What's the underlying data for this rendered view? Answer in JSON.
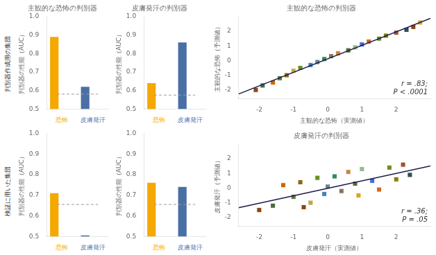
{
  "row_labels": [
    "判別器作成用の集団",
    "検証に用いた集団"
  ],
  "chart_data": [
    {
      "type": "bar",
      "title": "主観的な恐怖の判別器",
      "ylabel": "判別器の性能（AUC）",
      "categories": [
        "恐怖",
        "皮膚発汗"
      ],
      "series": [
        {
          "type": "bar",
          "colors": [
            "#F5A800",
            "#4A6FA5"
          ],
          "values": [
            0.89,
            0.62
          ]
        },
        {
          "type": "line",
          "color": "#999999",
          "line_style": "dashed",
          "values": [
            0.58,
            0.58
          ]
        }
      ],
      "ylim": [
        0.5,
        1.0
      ],
      "yticks": [
        0.5,
        0.6,
        0.7,
        0.8,
        0.9,
        {
          "value": 1.0,
          "label": "1.0"
        }
      ],
      "grid": false
    },
    {
      "type": "bar",
      "title": "皮膚発汗の判別器",
      "ylabel": "判別器の性能（AUC）",
      "categories": [
        "恐怖",
        "皮膚発汗"
      ],
      "series": [
        {
          "type": "bar",
          "colors": [
            "#F5A800",
            "#4A6FA5"
          ],
          "values": [
            0.64,
            0.86
          ]
        },
        {
          "type": "line",
          "color": "#999999",
          "line_style": "dashed",
          "values": [
            0.575,
            0.575
          ]
        }
      ],
      "ylim": [
        0.5,
        1.0
      ],
      "yticks": [
        0.5,
        0.6,
        0.7,
        0.8,
        0.9,
        {
          "value": 1.0,
          "label": "1.0"
        }
      ],
      "grid": false
    },
    {
      "type": "bar",
      "ylabel": "判別器の性能（AUC）",
      "categories": [
        "恐怖",
        "皮膚発汗"
      ],
      "series": [
        {
          "type": "bar",
          "colors": [
            "#F5A800",
            "#4A6FA5"
          ],
          "values": [
            0.71,
            0.505
          ]
        },
        {
          "type": "line",
          "color": "#999999",
          "line_style": "dashed",
          "values": [
            0.655,
            0.655
          ]
        }
      ],
      "ylim": [
        0.5,
        1.0
      ],
      "yticks": [
        0.5,
        0.6,
        0.7,
        0.8,
        0.9,
        {
          "value": 1.0,
          "label": "1.0"
        }
      ],
      "grid": false
    },
    {
      "type": "bar",
      "ylabel": "判別器の性能（AUC）",
      "categories": [
        "恐怖",
        "皮膚発汗"
      ],
      "series": [
        {
          "type": "bar",
          "colors": [
            "#F5A800",
            "#4A6FA5"
          ],
          "values": [
            0.76,
            0.74
          ]
        },
        {
          "type": "line",
          "color": "#999999",
          "line_style": "dashed",
          "values": [
            0.655,
            0.655
          ]
        }
      ],
      "ylim": [
        0.5,
        1.0
      ],
      "yticks": [
        0.5,
        0.6,
        0.7,
        0.8,
        0.9,
        {
          "value": 1.0,
          "label": "1.0"
        }
      ],
      "grid": false
    },
    {
      "type": "scatter",
      "title": "主観的な恐怖の判別器",
      "xlabel": "主観的な恐怖（実測値）",
      "ylabel": "主観的な恐怖（予測値）",
      "annotation": "r = .83;\nP < .0001",
      "series": [
        {
          "type": "scatter",
          "marker": "square",
          "colors": [
            "#8B4513",
            "#4a6b3a",
            "#cc6600",
            "#5b7a3d",
            "#8B6914",
            "#c4a44a",
            "#6b8e23",
            "#4682B4",
            "#708090",
            "#2e8b57",
            "#8b7355",
            "#cd853f",
            "#556b2f",
            "#8fbc8f",
            "#4169e1",
            "#d2691e",
            "#6b8e23",
            "#808000",
            "#a0522d",
            "#2f4f4f",
            "#8b4513",
            "#daa520"
          ],
          "x": [
            -2.1,
            -1.9,
            -1.6,
            -1.4,
            -1.2,
            -1.0,
            -0.8,
            -0.5,
            -0.3,
            -0.1,
            0.1,
            0.3,
            0.6,
            0.8,
            1.0,
            1.2,
            1.5,
            1.7,
            2.0,
            2.3,
            2.5,
            2.7
          ],
          "values": [
            -2.0,
            -1.7,
            -1.5,
            -1.2,
            -1.0,
            -0.7,
            -0.5,
            -0.3,
            -0.1,
            0.1,
            0.3,
            0.5,
            0.7,
            0.9,
            1.1,
            1.3,
            1.5,
            1.7,
            1.9,
            2.1,
            2.3,
            2.6
          ]
        },
        {
          "type": "line",
          "color": "#1a1a4a",
          "line_style": "solid",
          "x": [
            -2.6,
            3.0
          ],
          "values": [
            -2.278,
            2.888
          ]
        }
      ],
      "xlim": [
        -2.6,
        3.0
      ],
      "ylim": [
        -2.6,
        3.0
      ],
      "xticks": [
        -2,
        -1,
        0,
        1,
        2
      ],
      "yticks": [
        -2,
        -1,
        0,
        1,
        2
      ],
      "grid": false
    },
    {
      "type": "scatter",
      "title": "皮膚発汗の判別器",
      "xlabel": "皮膚発汗（実測値）",
      "ylabel": "皮膚発汗（予測値）",
      "annotation": "r = .36;\nP = .05",
      "series": [
        {
          "type": "scatter",
          "marker": "square",
          "colors": [
            "#8B4513",
            "#4a6b3a",
            "#cc6600",
            "#5b7a3d",
            "#8B6914",
            "#c4a44a",
            "#6b8e23",
            "#4682B4",
            "#708090",
            "#2e8b57",
            "#8b7355",
            "#cd853f",
            "#556b2f",
            "#8fbc8f",
            "#4169e1",
            "#d2691e",
            "#6b8e23",
            "#808000",
            "#a0522d",
            "#2f4f4f",
            "#8b4513",
            "#daa520"
          ],
          "x": [
            -2.0,
            -1.6,
            -1.3,
            -1.0,
            -0.8,
            -0.5,
            -0.3,
            -0.1,
            0.0,
            0.2,
            0.4,
            0.6,
            0.8,
            1.0,
            1.3,
            1.5,
            1.8,
            2.0,
            2.2,
            2.4,
            -0.7,
            0.9
          ],
          "values": [
            -1.5,
            -1.2,
            0.2,
            -0.6,
            0.4,
            -1.0,
            0.7,
            -0.4,
            0.1,
            0.8,
            -0.2,
            1.1,
            0.3,
            1.3,
            0.5,
            -0.1,
            1.4,
            0.6,
            1.6,
            0.9,
            -1.3,
            -0.5
          ]
        },
        {
          "type": "line",
          "color": "#1a1a4a",
          "line_style": "solid",
          "x": [
            -2.6,
            3.0
          ],
          "values": [
            -1.335,
            1.506
          ]
        }
      ],
      "xlim": [
        -2.6,
        3.0
      ],
      "ylim": [
        -2.6,
        3.0
      ],
      "xticks": [
        -2,
        -1,
        0,
        1,
        2
      ],
      "yticks": [
        -2,
        -1,
        0,
        1,
        2
      ],
      "grid": false
    }
  ]
}
